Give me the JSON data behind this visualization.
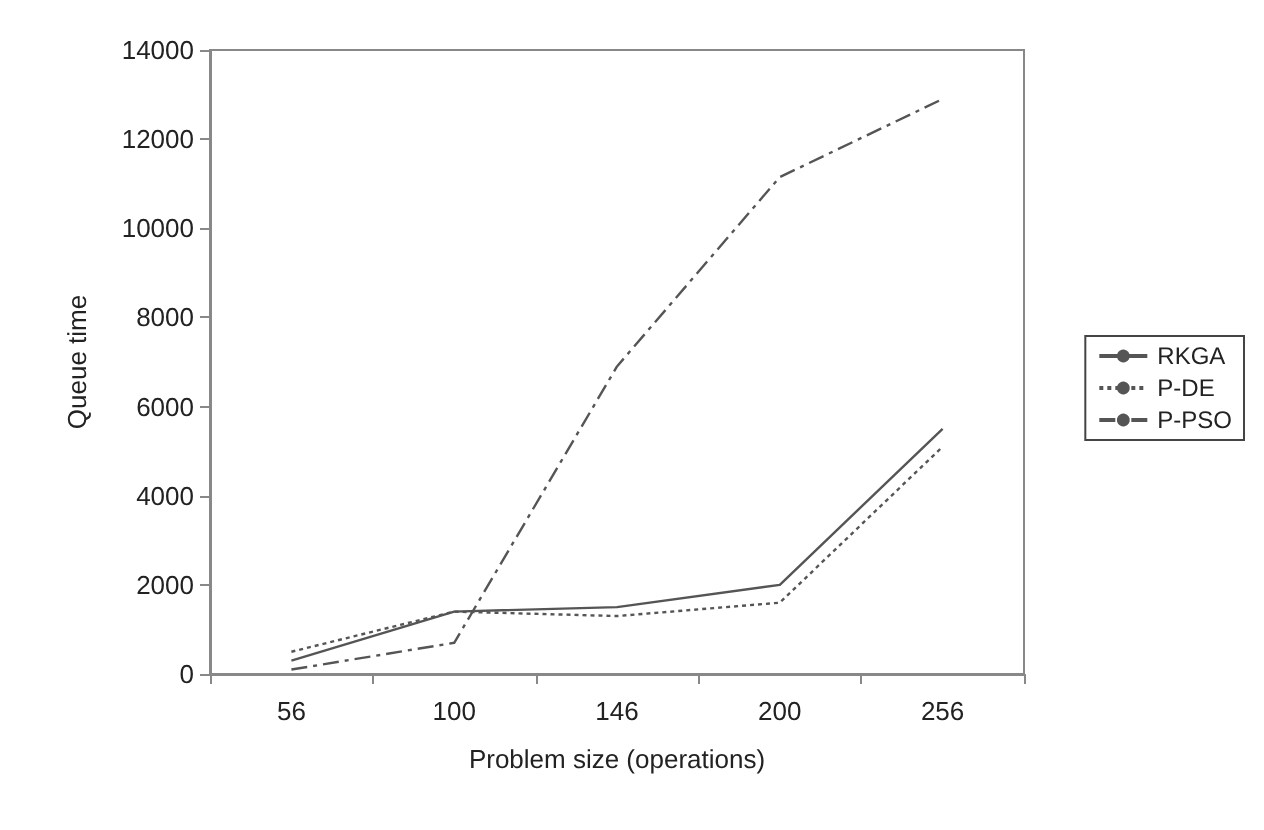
{
  "chart_data": {
    "type": "line",
    "xlabel": "Problem size (operations)",
    "ylabel": "Queue time",
    "categories": [
      "56",
      "100",
      "146",
      "200",
      "256"
    ],
    "ylim": [
      0,
      14000
    ],
    "yticks": [
      0,
      2000,
      4000,
      6000,
      8000,
      10000,
      12000,
      14000
    ],
    "grid": false,
    "legend": "right",
    "marker": "none",
    "series": [
      {
        "name": "RKGA",
        "color": "#555555",
        "line_style": "solid",
        "values": [
          300,
          1400,
          1500,
          2000,
          5500
        ]
      },
      {
        "name": "P-DE",
        "color": "#555555",
        "line_style": "dotted",
        "values": [
          500,
          1400,
          1300,
          1600,
          5100
        ]
      },
      {
        "name": "P-PSO",
        "color": "#555555",
        "line_style": "dashed",
        "values": [
          100,
          700,
          6900,
          11150,
          12900
        ]
      }
    ]
  }
}
